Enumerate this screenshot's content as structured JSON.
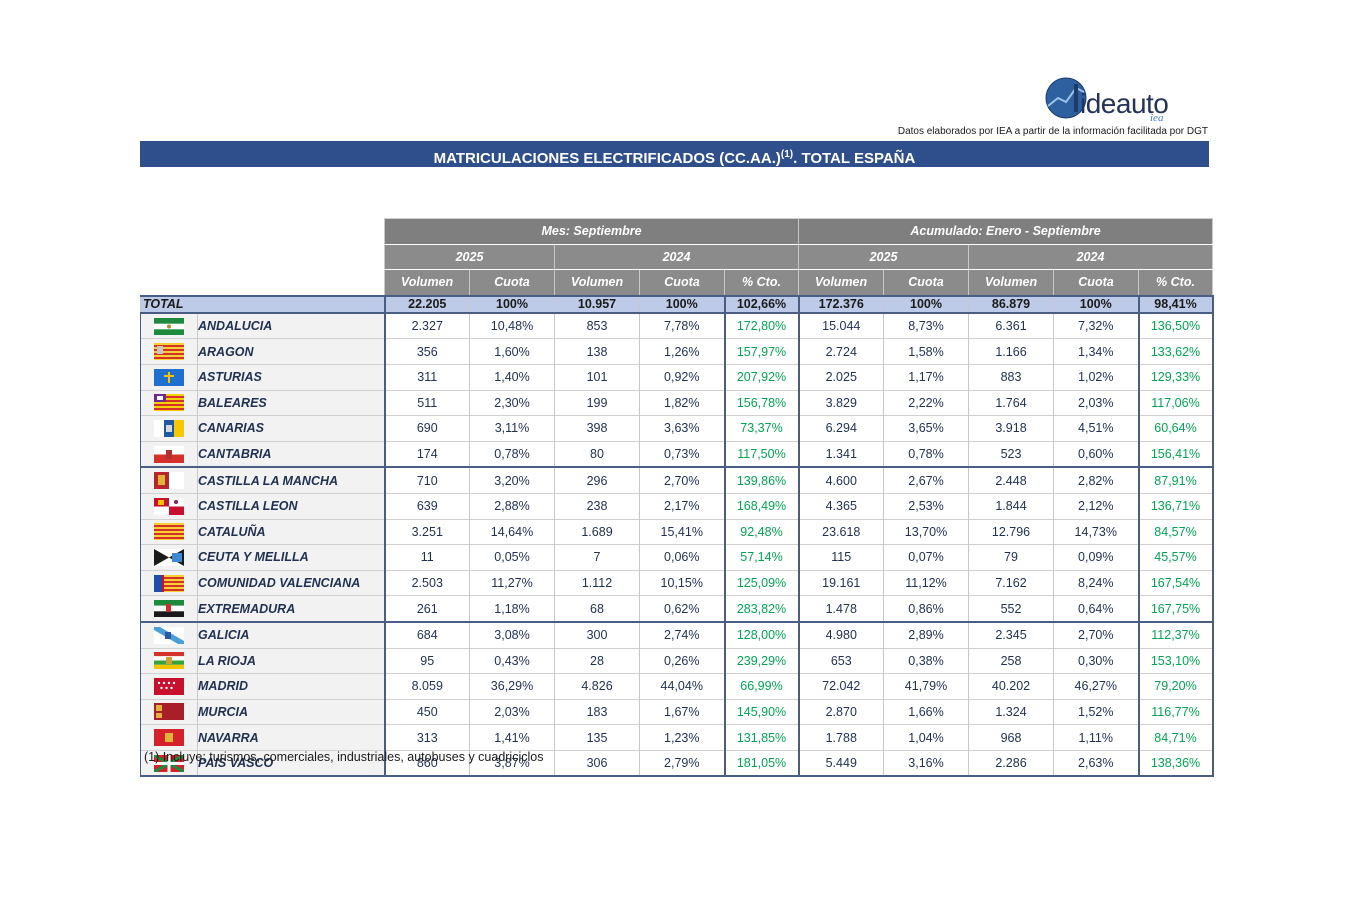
{
  "logo": {
    "text": "ideauto",
    "sub": "iea"
  },
  "source_text": "Datos elaborados por IEA a partir de la información facilitada por DGT",
  "title": {
    "main": "MATRICULACIONES ELECTRIFICADOS (CC.AA.)",
    "sup": "(1)",
    "rest": ". TOTAL ESPAÑA"
  },
  "headers": {
    "group_month": "Mes: Septiembre",
    "group_ytd": "Acumulado: Enero - Septiembre",
    "year_a": "2025",
    "year_b": "2024",
    "col_volumen": "Volumen",
    "col_cuota": "Cuota",
    "col_cto": "% Cto."
  },
  "total": {
    "label": "TOTAL",
    "values": [
      "22.205",
      "100%",
      "10.957",
      "100%",
      "102,66%",
      "172.376",
      "100%",
      "86.879",
      "100%",
      "98,41%"
    ]
  },
  "rows": [
    {
      "region": "ANDALUCIA",
      "flag": "flag-andalucia",
      "values": [
        "2.327",
        "10,48%",
        "853",
        "7,78%",
        "172,80%",
        "15.044",
        "8,73%",
        "6.361",
        "7,32%",
        "136,50%"
      ]
    },
    {
      "region": "ARAGON",
      "flag": "flag-aragon",
      "values": [
        "356",
        "1,60%",
        "138",
        "1,26%",
        "157,97%",
        "2.724",
        "1,58%",
        "1.166",
        "1,34%",
        "133,62%"
      ]
    },
    {
      "region": "ASTURIAS",
      "flag": "flag-asturias",
      "values": [
        "311",
        "1,40%",
        "101",
        "0,92%",
        "207,92%",
        "2.025",
        "1,17%",
        "883",
        "1,02%",
        "129,33%"
      ]
    },
    {
      "region": "BALEARES",
      "flag": "flag-baleares",
      "values": [
        "511",
        "2,30%",
        "199",
        "1,82%",
        "156,78%",
        "3.829",
        "2,22%",
        "1.764",
        "2,03%",
        "117,06%"
      ]
    },
    {
      "region": "CANARIAS",
      "flag": "flag-canarias",
      "values": [
        "690",
        "3,11%",
        "398",
        "3,63%",
        "73,37%",
        "6.294",
        "3,65%",
        "3.918",
        "4,51%",
        "60,64%"
      ]
    },
    {
      "region": "CANTABRIA",
      "flag": "flag-cantabria",
      "values": [
        "174",
        "0,78%",
        "80",
        "0,73%",
        "117,50%",
        "1.341",
        "0,78%",
        "523",
        "0,60%",
        "156,41%"
      ]
    },
    {
      "region": "CASTILLA LA MANCHA",
      "flag": "flag-castilla-la-mancha",
      "values": [
        "710",
        "3,20%",
        "296",
        "2,70%",
        "139,86%",
        "4.600",
        "2,67%",
        "2.448",
        "2,82%",
        "87,91%"
      ]
    },
    {
      "region": "CASTILLA LEON",
      "flag": "flag-castilla-leon",
      "values": [
        "639",
        "2,88%",
        "238",
        "2,17%",
        "168,49%",
        "4.365",
        "2,53%",
        "1.844",
        "2,12%",
        "136,71%"
      ]
    },
    {
      "region": "CATALUÑA",
      "flag": "flag-cataluna",
      "values": [
        "3.251",
        "14,64%",
        "1.689",
        "15,41%",
        "92,48%",
        "23.618",
        "13,70%",
        "12.796",
        "14,73%",
        "84,57%"
      ]
    },
    {
      "region": "CEUTA Y MELILLA",
      "flag": "flag-ceuta-melilla",
      "values": [
        "11",
        "0,05%",
        "7",
        "0,06%",
        "57,14%",
        "115",
        "0,07%",
        "79",
        "0,09%",
        "45,57%"
      ]
    },
    {
      "region": "COMUNIDAD VALENCIANA",
      "flag": "flag-valencia",
      "values": [
        "2.503",
        "11,27%",
        "1.112",
        "10,15%",
        "125,09%",
        "19.161",
        "11,12%",
        "7.162",
        "8,24%",
        "167,54%"
      ]
    },
    {
      "region": "EXTREMADURA",
      "flag": "flag-extremadura",
      "values": [
        "261",
        "1,18%",
        "68",
        "0,62%",
        "283,82%",
        "1.478",
        "0,86%",
        "552",
        "0,64%",
        "167,75%"
      ]
    },
    {
      "region": "GALICIA",
      "flag": "flag-galicia",
      "values": [
        "684",
        "3,08%",
        "300",
        "2,74%",
        "128,00%",
        "4.980",
        "2,89%",
        "2.345",
        "2,70%",
        "112,37%"
      ]
    },
    {
      "region": "LA RIOJA",
      "flag": "flag-la-rioja",
      "values": [
        "95",
        "0,43%",
        "28",
        "0,26%",
        "239,29%",
        "653",
        "0,38%",
        "258",
        "0,30%",
        "153,10%"
      ]
    },
    {
      "region": "MADRID",
      "flag": "flag-madrid",
      "values": [
        "8.059",
        "36,29%",
        "4.826",
        "44,04%",
        "66,99%",
        "72.042",
        "41,79%",
        "40.202",
        "46,27%",
        "79,20%"
      ]
    },
    {
      "region": "MURCIA",
      "flag": "flag-murcia",
      "values": [
        "450",
        "2,03%",
        "183",
        "1,67%",
        "145,90%",
        "2.870",
        "1,66%",
        "1.324",
        "1,52%",
        "116,77%"
      ]
    },
    {
      "region": "NAVARRA",
      "flag": "flag-navarra",
      "values": [
        "313",
        "1,41%",
        "135",
        "1,23%",
        "131,85%",
        "1.788",
        "1,04%",
        "968",
        "1,11%",
        "84,71%"
      ]
    },
    {
      "region": "PAIS VASCO",
      "flag": "flag-pais-vasco",
      "values": [
        "860",
        "3,87%",
        "306",
        "2,79%",
        "181,05%",
        "5.449",
        "3,16%",
        "2.286",
        "2,63%",
        "138,36%"
      ]
    }
  ],
  "colors": {
    "title_bg": "#2e4e8c",
    "header_bg": "#8b8b8b",
    "total_bg": "#bdcbe8",
    "growth": "#00a651"
  },
  "footnote": "(1) Incluye: turismos, comerciales, industriales, autobuses y cuadriciclos"
}
